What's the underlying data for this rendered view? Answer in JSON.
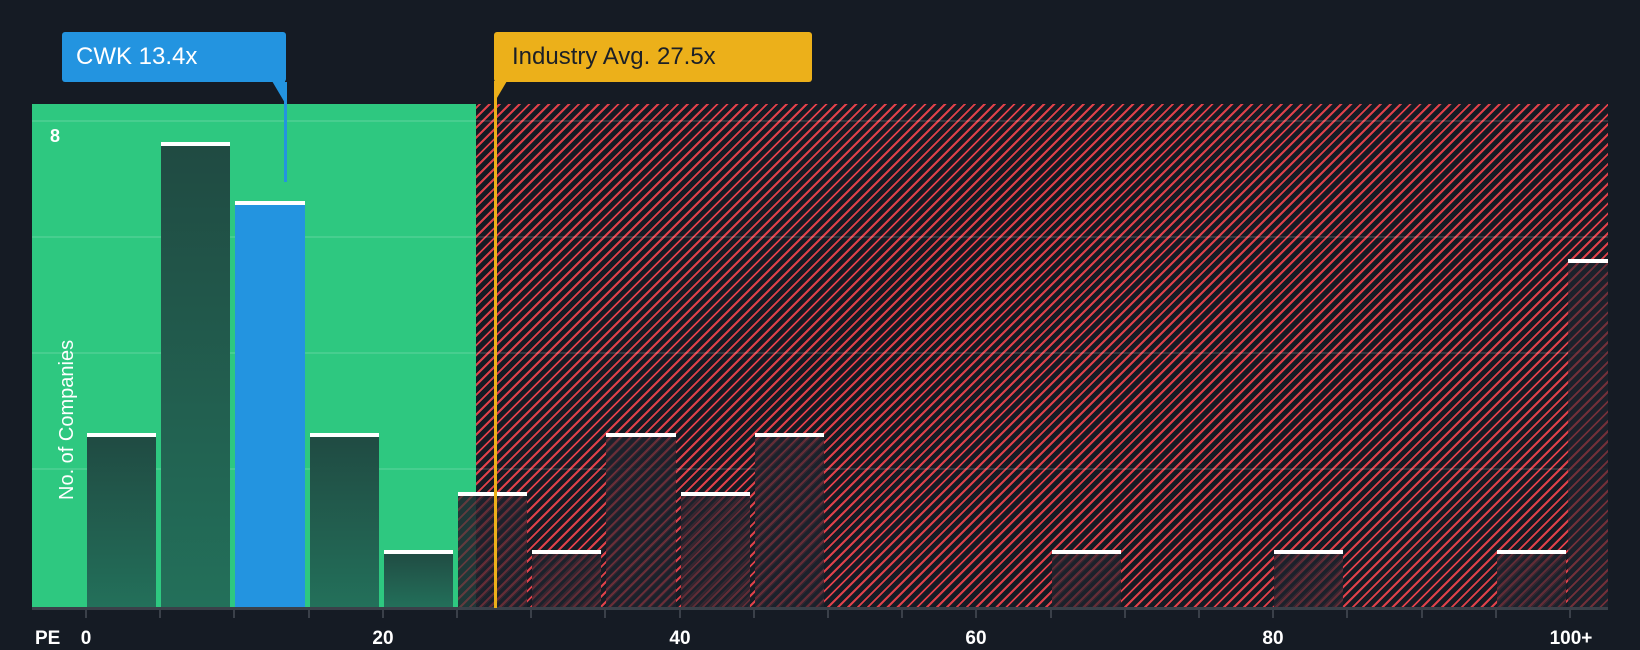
{
  "chart_data": {
    "type": "bar",
    "title": "",
    "xlabel": "PE",
    "ylabel": "No. of Companies",
    "x_tick_labels": [
      "0",
      "20",
      "40",
      "60",
      "80",
      "100+"
    ],
    "y_tick_labels": [
      "8"
    ],
    "ylim": [
      0,
      8.3
    ],
    "grid": true,
    "bin_width": 5,
    "categories": [
      "0-5",
      "5-10",
      "10-15",
      "15-20",
      "20-25",
      "25-30",
      "30-35",
      "35-40",
      "40-45",
      "45-50",
      "50-55",
      "55-60",
      "60-65",
      "65-70",
      "70-75",
      "75-80",
      "80-85",
      "85-90",
      "90-95",
      "95-100",
      "100+"
    ],
    "values": [
      3,
      8,
      7,
      3,
      1,
      2,
      1,
      3,
      2,
      3,
      0,
      0,
      0,
      1,
      0,
      0,
      1,
      0,
      0,
      1,
      6
    ],
    "highlight_bin": "10-15",
    "annotations": [
      {
        "label": "CWK 13.4x",
        "value": 13.4,
        "color": "#2394e0"
      },
      {
        "label": "Industry Avg. 27.5x",
        "value": 27.5,
        "color": "#ecb01a"
      }
    ],
    "zones": [
      {
        "name": "below-average",
        "from": 0,
        "to": 26.5,
        "color": "#2ec880"
      },
      {
        "name": "above-average",
        "from": 26.5,
        "to": 102,
        "color": "#e0414a",
        "pattern": "diagonal-hatch"
      }
    ]
  },
  "labels": {
    "company_callout": "CWK 13.4x",
    "industry_callout": "Industry Avg. 27.5x",
    "axis_name": "PE",
    "y_axis_title": "No. of Companies",
    "y_max_tick": "8",
    "x_ticks": [
      "0",
      "20",
      "40",
      "60",
      "80",
      "100+"
    ]
  },
  "colors": {
    "background": "#151b24",
    "good_zone": "#2ec880",
    "bad_zone_hatch": "#e0414a",
    "company": "#2394e0",
    "industry": "#ecb01a"
  }
}
